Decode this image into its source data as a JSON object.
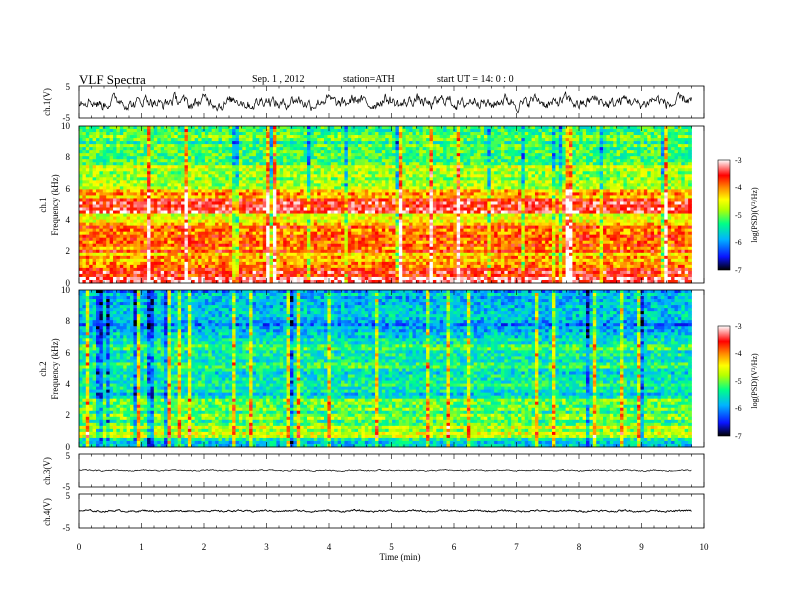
{
  "header": {
    "title": "VLF  Spectra",
    "date": "Sep. 1  , 2012",
    "station": "station=ATH",
    "start": "start  UT  =    14: 0  : 0"
  },
  "chart_data": {
    "type": "heatmap",
    "xlabel": "Time  (min)",
    "xlim": [
      0,
      10
    ],
    "x_data_end": 9.8,
    "x_ticks": [
      "0",
      "1",
      "2",
      "3",
      "4",
      "5",
      "6",
      "7",
      "8",
      "9",
      "10"
    ],
    "panels": [
      {
        "kind": "waveform",
        "ylabel": "ch.1(V)",
        "ylim": [
          -5,
          5
        ],
        "ticks": [
          "5",
          "-5"
        ],
        "amplitude": 2.8
      },
      {
        "kind": "spectrogram",
        "channel": "ch.1",
        "ylabel": "Frequency  (kHz)",
        "ylim": [
          0,
          10
        ],
        "ticks": [
          "0",
          "2",
          "4",
          "6",
          "8",
          "10"
        ],
        "colorbar": {
          "label": "log(PSD)(V²/Hz)",
          "range": [
            -7,
            -3
          ],
          "ticks": [
            "-3",
            "-4",
            "-5",
            "-6",
            "-7"
          ]
        },
        "bands_khz": [
          {
            "from": 0.0,
            "to": 0.3,
            "level": -3.2
          },
          {
            "from": 0.3,
            "to": 1.0,
            "level": -3.6
          },
          {
            "from": 1.0,
            "to": 2.0,
            "level": -4.2
          },
          {
            "from": 2.0,
            "to": 3.6,
            "level": -3.9
          },
          {
            "from": 3.6,
            "to": 4.5,
            "level": -4.4
          },
          {
            "from": 4.5,
            "to": 5.3,
            "level": -3.6
          },
          {
            "from": 5.3,
            "to": 6.0,
            "level": -4.2
          },
          {
            "from": 6.0,
            "to": 7.5,
            "level": -4.9
          },
          {
            "from": 7.5,
            "to": 10.0,
            "level": -5.2
          }
        ]
      },
      {
        "kind": "spectrogram",
        "channel": "ch.2",
        "ylabel": "Frequency  (kHz)",
        "ylim": [
          0,
          10
        ],
        "ticks": [
          "0",
          "2",
          "4",
          "6",
          "8",
          "10"
        ],
        "colorbar": {
          "label": "log(PSD)(V²/Hz)",
          "range": [
            -7,
            -3
          ],
          "ticks": [
            "-3",
            "-4",
            "-5",
            "-6",
            "-7"
          ]
        },
        "bands_khz": [
          {
            "from": 0.0,
            "to": 0.5,
            "level": -5.6
          },
          {
            "from": 0.5,
            "to": 1.3,
            "level": -4.8
          },
          {
            "from": 1.3,
            "to": 3.0,
            "level": -5.1
          },
          {
            "from": 3.0,
            "to": 5.0,
            "level": -5.5
          },
          {
            "from": 5.0,
            "to": 7.0,
            "level": -5.3
          },
          {
            "from": 7.0,
            "to": 10.0,
            "level": -5.9
          }
        ]
      },
      {
        "kind": "waveform",
        "ylabel": "ch.3(V)",
        "ylim": [
          -5,
          5
        ],
        "ticks": [
          "5",
          "-5"
        ],
        "amplitude": 0.3
      },
      {
        "kind": "waveform",
        "ylabel": "ch.4(V)",
        "ylim": [
          -5,
          5
        ],
        "ticks": [
          "5",
          "-5"
        ],
        "amplitude": 0.4
      }
    ]
  },
  "colors": {
    "waveform": "#000000",
    "colormap": [
      "#000000",
      "#1030ff",
      "#00c0ff",
      "#00ff80",
      "#b0ff00",
      "#ffff00",
      "#ff8000",
      "#ff0000",
      "#ffffff"
    ]
  }
}
